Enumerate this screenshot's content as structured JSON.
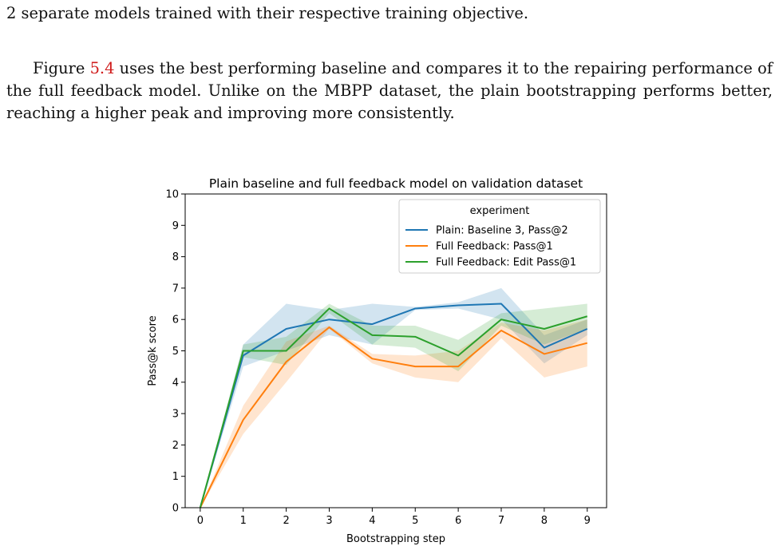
{
  "text": {
    "line_top": "2 separate models trained with their respective training objective.",
    "para_before": "Figure ",
    "fig_ref": "5.4",
    "para_after": " uses the best performing baseline and compares it to the repairing performance of the full feedback model. Unlike on the MBPP dataset, the plain bootstrapping performs better, reaching a higher peak and improving more consistently."
  },
  "chart_data": {
    "type": "line",
    "title": "Plain baseline and full feedback model on validation dataset",
    "xlabel": "Bootstrapping step",
    "ylabel": "Pass@k score",
    "x": [
      0,
      1,
      2,
      3,
      4,
      5,
      6,
      7,
      8,
      9
    ],
    "xlim": [
      -0.35,
      9.45
    ],
    "ylim": [
      0,
      10
    ],
    "xticks": [
      "0",
      "1",
      "2",
      "3",
      "4",
      "5",
      "6",
      "7",
      "8",
      "9"
    ],
    "yticks": [
      "0",
      "1",
      "2",
      "3",
      "4",
      "5",
      "6",
      "7",
      "8",
      "9",
      "10"
    ],
    "grid": false,
    "legend_title": "experiment",
    "legend_position": "upper right",
    "series": [
      {
        "name": "Plain: Baseline 3, Pass@2",
        "color": "#1f77b4",
        "values": [
          0,
          4.85,
          5.7,
          6.0,
          5.85,
          6.35,
          6.45,
          6.5,
          5.1,
          5.7
        ],
        "lower": [
          0,
          4.5,
          5.0,
          5.5,
          5.2,
          6.3,
          6.35,
          6.0,
          4.6,
          5.5
        ],
        "upper": [
          0,
          5.2,
          6.5,
          6.3,
          6.5,
          6.4,
          6.55,
          7.0,
          5.5,
          6.0
        ]
      },
      {
        "name": "Full Feedback: Pass@1",
        "color": "#ff7f0e",
        "values": [
          0,
          2.8,
          4.65,
          5.75,
          4.75,
          4.5,
          4.5,
          5.65,
          4.9,
          5.25
        ],
        "lower": [
          0,
          2.35,
          4.0,
          5.7,
          4.6,
          4.15,
          4.0,
          5.4,
          4.15,
          4.5
        ],
        "upper": [
          0,
          3.25,
          5.3,
          5.8,
          4.9,
          4.85,
          5.0,
          5.9,
          5.65,
          6.0
        ]
      },
      {
        "name": "Full Feedback: Edit Pass@1",
        "color": "#2ca02c",
        "values": [
          0,
          5.0,
          5.0,
          6.35,
          5.5,
          5.45,
          4.85,
          6.0,
          5.7,
          6.1
        ],
        "lower": [
          0,
          4.8,
          4.55,
          6.2,
          5.2,
          5.1,
          4.35,
          5.8,
          5.2,
          5.7
        ],
        "upper": [
          0,
          5.2,
          5.45,
          6.5,
          5.8,
          5.8,
          5.35,
          6.2,
          6.35,
          6.5
        ]
      }
    ]
  }
}
